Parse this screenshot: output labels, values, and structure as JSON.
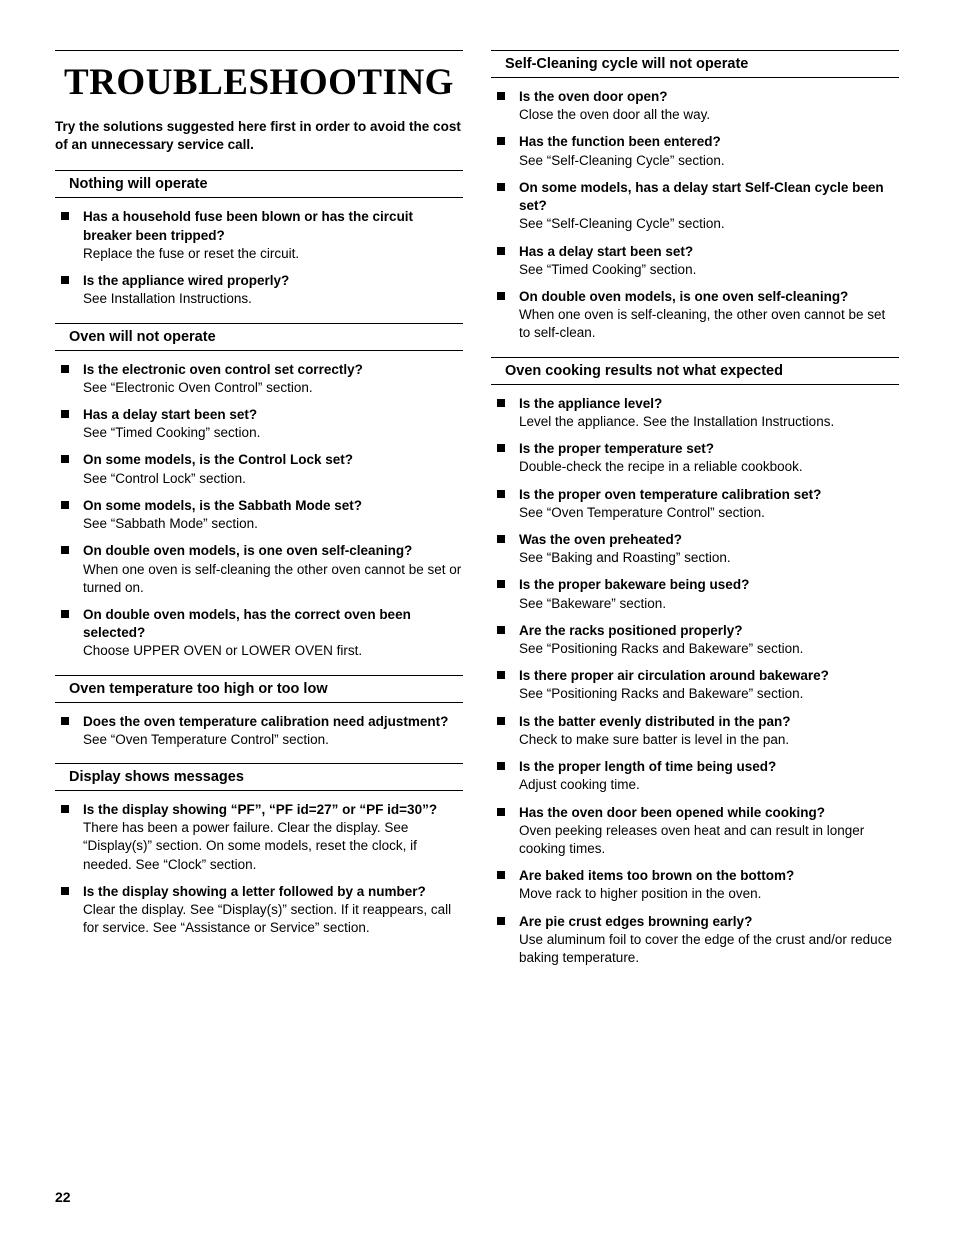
{
  "title": "TROUBLESHOOTING",
  "intro": "Try the solutions suggested here first in order to avoid the cost of an unnecessary service call.",
  "pageNumber": "22",
  "sections": [
    {
      "heading": "Nothing will operate",
      "items": [
        {
          "q": "Has a household fuse been blown or has the circuit breaker been tripped?",
          "a": "Replace the fuse or reset the circuit."
        },
        {
          "q": "Is the appliance wired properly?",
          "a": "See Installation Instructions."
        }
      ]
    },
    {
      "heading": "Oven will not operate",
      "items": [
        {
          "q": "Is the electronic oven control set correctly?",
          "a": "See “Electronic Oven Control” section."
        },
        {
          "q": "Has a delay start been set?",
          "a": "See “Timed Cooking” section."
        },
        {
          "q": "On some models, is the Control Lock set?",
          "a": "See “Control Lock” section."
        },
        {
          "q": "On some models, is the Sabbath Mode set?",
          "a": "See “Sabbath Mode” section."
        },
        {
          "q": "On double oven models, is one oven self-cleaning?",
          "a": "When one oven is self-cleaning the other oven cannot be set or turned on."
        },
        {
          "q": "On double oven models, has the correct oven been selected?",
          "a": "Choose UPPER OVEN or LOWER OVEN first."
        }
      ]
    },
    {
      "heading": "Oven temperature too high or too low",
      "items": [
        {
          "q": "Does the oven temperature calibration need adjustment?",
          "a": "See “Oven Temperature Control” section."
        }
      ]
    },
    {
      "heading": "Display shows messages",
      "items": [
        {
          "q": "Is the display showing “PF”, “PF id=27” or “PF id=30”?",
          "a": "There has been a power failure. Clear the display. See “Display(s)” section. On some models, reset the clock, if needed. See “Clock” section."
        },
        {
          "q": "Is the display showing a letter followed by a number?",
          "a": "Clear the display. See “Display(s)” section. If it reappears, call for service. See “Assistance or Service” section."
        }
      ]
    },
    {
      "heading": "Self-Cleaning cycle will not operate",
      "items": [
        {
          "q": "Is the oven door open?",
          "a": "Close the oven door all the way."
        },
        {
          "q": "Has the function been entered?",
          "a": "See “Self-Cleaning Cycle” section."
        },
        {
          "q": "On some models, has a delay start Self-Clean cycle been set?",
          "a": "See “Self-Cleaning Cycle” section."
        },
        {
          "q": "Has a delay start been set?",
          "a": "See “Timed Cooking” section."
        },
        {
          "q": "On double oven models, is one oven self-cleaning?",
          "a": "When one oven is self-cleaning, the other oven cannot be set to self-clean."
        }
      ]
    },
    {
      "heading": "Oven cooking results not what expected",
      "items": [
        {
          "q": "Is the appliance level?",
          "a": "Level the appliance. See the Installation Instructions."
        },
        {
          "q": "Is the proper temperature set?",
          "a": "Double-check the recipe in a reliable cookbook."
        },
        {
          "q": "Is the proper oven temperature calibration set?",
          "a": "See “Oven Temperature Control” section."
        },
        {
          "q": "Was the oven preheated?",
          "a": "See “Baking and Roasting” section."
        },
        {
          "q": "Is the proper bakeware being used?",
          "a": "See “Bakeware” section."
        },
        {
          "q": "Are the racks positioned properly?",
          "a": "See “Positioning Racks and Bakeware” section."
        },
        {
          "q": "Is there proper air circulation around bakeware?",
          "a": "See “Positioning Racks and Bakeware” section."
        },
        {
          "q": "Is the batter evenly distributed in the pan?",
          "a": "Check to make sure batter is level in the pan."
        },
        {
          "q": "Is the proper length of time being used?",
          "a": "Adjust cooking time."
        },
        {
          "q": "Has the oven door been opened while cooking?",
          "a": "Oven peeking releases oven heat and can result in longer cooking times."
        },
        {
          "q": "Are baked items too brown on the bottom?",
          "a": "Move rack to higher position in the oven."
        },
        {
          "q": "Are pie crust edges browning early?",
          "a": "Use aluminum foil to cover the edge of the crust and/or reduce baking temperature."
        }
      ]
    }
  ]
}
